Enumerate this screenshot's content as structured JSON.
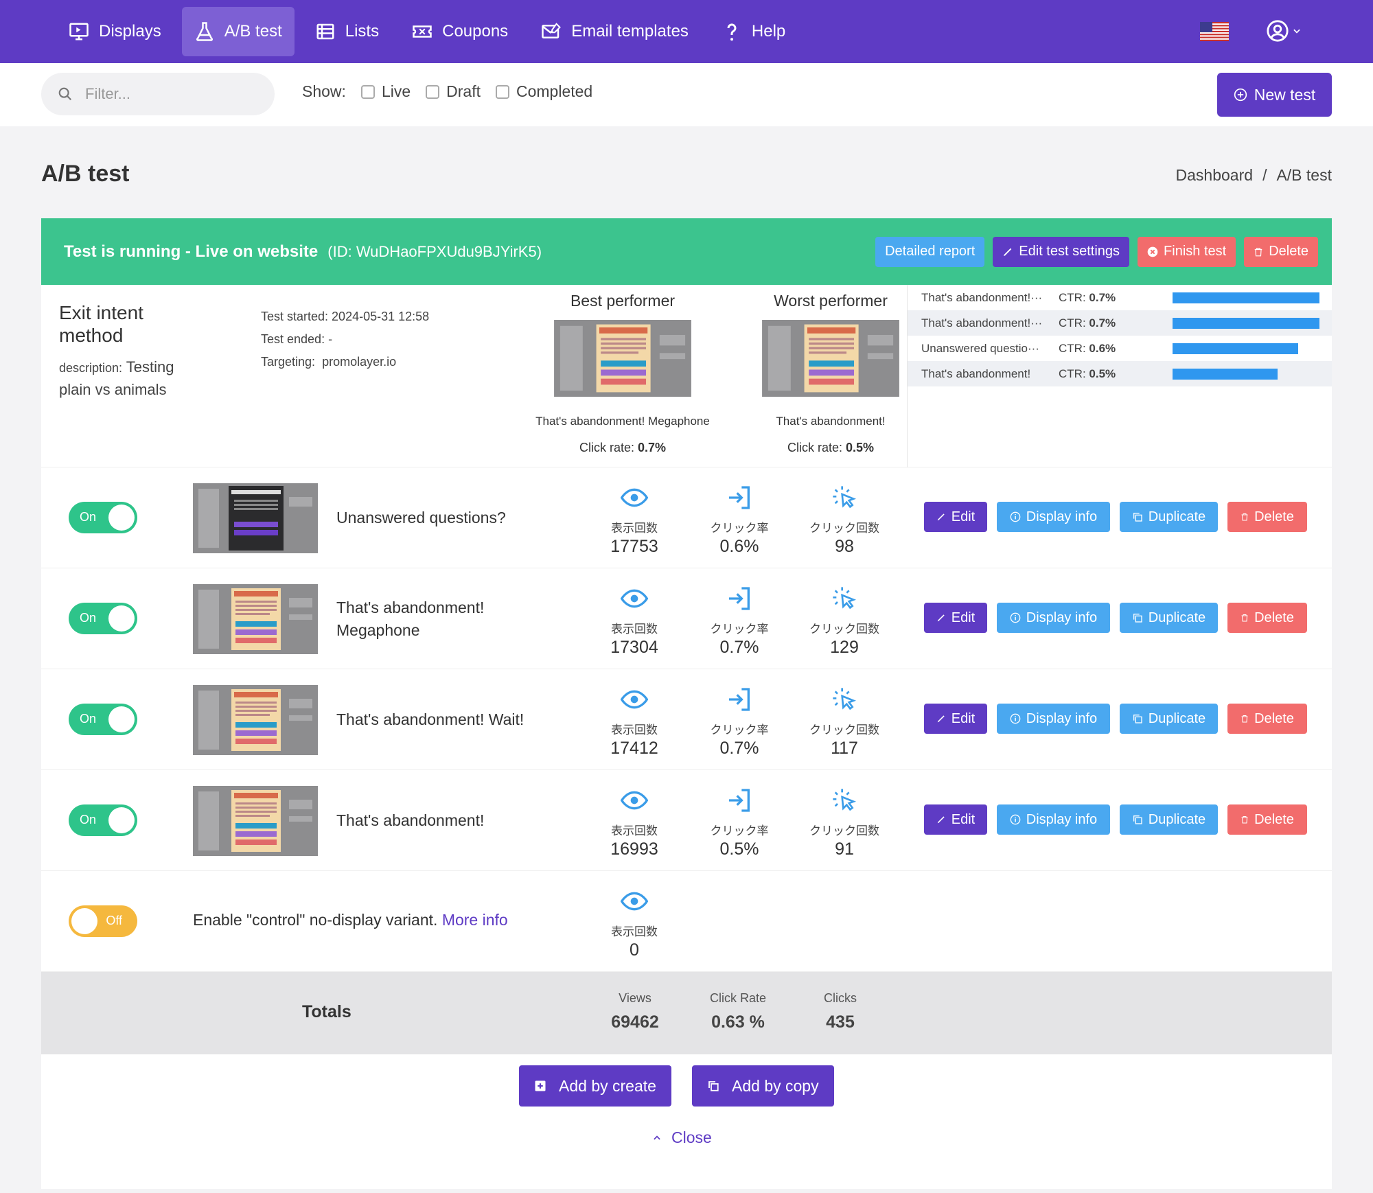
{
  "nav": {
    "items": [
      {
        "label": "Displays",
        "icon": "monitor-icon"
      },
      {
        "label": "A/B test",
        "icon": "flask-icon",
        "active": true
      },
      {
        "label": "Lists",
        "icon": "list-icon"
      },
      {
        "label": "Coupons",
        "icon": "ticket-icon"
      },
      {
        "label": "Email templates",
        "icon": "mail-icon"
      },
      {
        "label": "Help",
        "icon": "help-icon"
      }
    ],
    "flag": "us-flag-icon",
    "user_icon": "user-circle-icon"
  },
  "filter": {
    "placeholder": "Filter...",
    "show_label": "Show:",
    "options": [
      "Live",
      "Draft",
      "Completed"
    ],
    "new_test_label": "New test"
  },
  "page": {
    "title": "A/B test",
    "breadcrumb": [
      "Dashboard",
      "/",
      "A/B test"
    ]
  },
  "banner": {
    "status": "Test is running - Live on website",
    "id_text": "(ID: WuDHaoFPXUdu9BJYirK5)",
    "actions": {
      "report": "Detailed report",
      "edit": "Edit test settings",
      "finish": "Finish test",
      "delete": "Delete"
    }
  },
  "summary": {
    "title": "Exit intent method",
    "description_label": "description:",
    "description": "Testing plain vs animals",
    "started": "Test started: 2024-05-31 12:58",
    "ended": "Test ended: -",
    "targeting_label": "Targeting:",
    "targeting": "promolayer.io",
    "best": {
      "title": "Best performer",
      "name": "That's abandonment! Megaphone",
      "rate_label": "Click rate:",
      "rate": "0.7%"
    },
    "worst": {
      "title": "Worst performer",
      "name": "That's abandonment!",
      "rate_label": "Click rate:",
      "rate": "0.5%"
    }
  },
  "ctr_list": [
    {
      "name": "That's abandonment!···",
      "label": "CTR:",
      "value": "0.7%",
      "pct": 0.7
    },
    {
      "name": "That's abandonment!···",
      "label": "CTR:",
      "value": "0.7%",
      "pct": 0.7
    },
    {
      "name": "Unanswered questio···",
      "label": "CTR:",
      "value": "0.6%",
      "pct": 0.6
    },
    {
      "name": "That's abandonment!",
      "label": "CTR:",
      "value": "0.5%",
      "pct": 0.5
    }
  ],
  "stat_labels": {
    "views": "表示回数",
    "rate": "クリック率",
    "clicks": "クリック回数"
  },
  "variant_buttons": {
    "edit": "Edit",
    "info": "Display info",
    "duplicate": "Duplicate",
    "delete": "Delete"
  },
  "variants": [
    {
      "toggle": "On",
      "name": "Unanswered questions?",
      "views": "17753",
      "rate": "0.6%",
      "clicks": "98"
    },
    {
      "toggle": "On",
      "name": "That's abandonment! Megaphone",
      "views": "17304",
      "rate": "0.7%",
      "clicks": "129"
    },
    {
      "toggle": "On",
      "name": "That's abandonment! Wait!",
      "views": "17412",
      "rate": "0.7%",
      "clicks": "117"
    },
    {
      "toggle": "On",
      "name": "That's abandonment!",
      "views": "16993",
      "rate": "0.5%",
      "clicks": "91"
    }
  ],
  "control": {
    "toggle": "Off",
    "text": "Enable \"control\" no-display variant.",
    "link": "More info",
    "views": "0"
  },
  "totals": {
    "label": "Totals",
    "views_label": "Views",
    "views": "69462",
    "rate_label": "Click Rate",
    "rate": "0.63 %",
    "clicks_label": "Clicks",
    "clicks": "435"
  },
  "add": {
    "create": "Add by create",
    "copy": "Add by copy",
    "close": "Close"
  },
  "colors": {
    "primary": "#5e3bc4",
    "success": "#3cc48e",
    "info": "#4aa8f0",
    "danger": "#f26c6c",
    "warning": "#f5b83e"
  }
}
